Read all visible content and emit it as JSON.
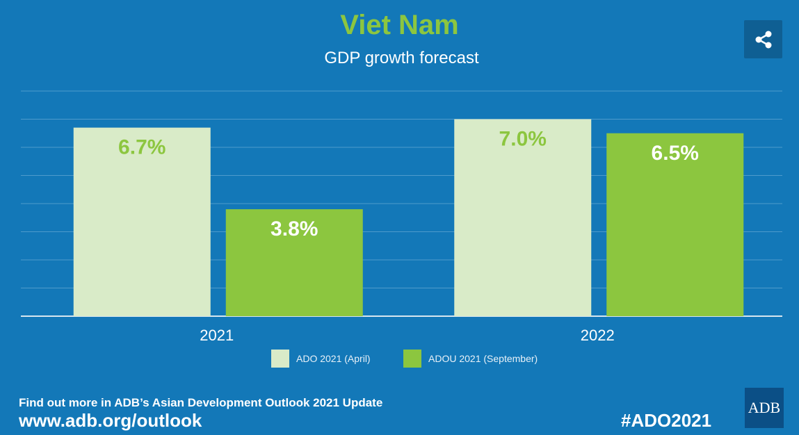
{
  "header": {
    "title": "Viet Nam",
    "subtitle": "GDP growth forecast"
  },
  "share_icon": "share-icon",
  "chart_data": {
    "type": "bar",
    "categories": [
      "2021",
      "2022"
    ],
    "series": [
      {
        "name": "ADO 2021 (April)",
        "values": [
          6.7,
          7.0
        ],
        "labels": [
          "6.7%",
          "7.0%"
        ],
        "color": "#d9ebc8",
        "label_color": "#8cc63f"
      },
      {
        "name": "ADOU 2021 (September)",
        "values": [
          3.8,
          6.5
        ],
        "labels": [
          "3.8%",
          "6.5%"
        ],
        "color": "#8cc63f",
        "label_color": "#ffffff"
      }
    ],
    "ylim": [
      0,
      8
    ],
    "grid": true,
    "legend": "bottom-center"
  },
  "footer": {
    "text": "Find out more in ADB’s Asian Development Outlook 2021 Update",
    "url": "www.adb.org/outlook",
    "hashtag": "#ADO2021",
    "logo_text": "ADB"
  },
  "colors": {
    "background": "#1378b8",
    "title": "#8cc63f",
    "grid": "#4f9bcc"
  }
}
